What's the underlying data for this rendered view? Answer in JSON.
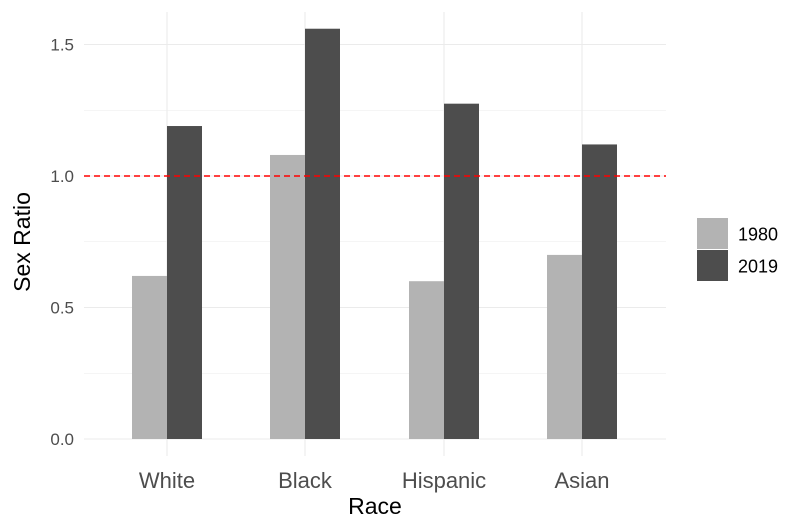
{
  "chart_data": {
    "type": "bar",
    "categories": [
      "White",
      "Black",
      "Hispanic",
      "Asian"
    ],
    "series": [
      {
        "name": "1980",
        "values": [
          0.62,
          1.08,
          0.6,
          0.7
        ],
        "color": "#b3b3b3"
      },
      {
        "name": "2019",
        "values": [
          1.19,
          1.56,
          1.275,
          1.12
        ],
        "color": "#4d4d4d"
      }
    ],
    "xlabel": "Race",
    "ylabel": "Sex Ratio",
    "ylim": [
      0,
      1.6
    ],
    "yticks": [
      "0.0",
      "0.5",
      "1.0",
      "1.5"
    ],
    "reference_line": {
      "y": 1.0,
      "color": "#ff0000",
      "style": "dashed"
    },
    "grid": true,
    "legend_position": "right"
  }
}
